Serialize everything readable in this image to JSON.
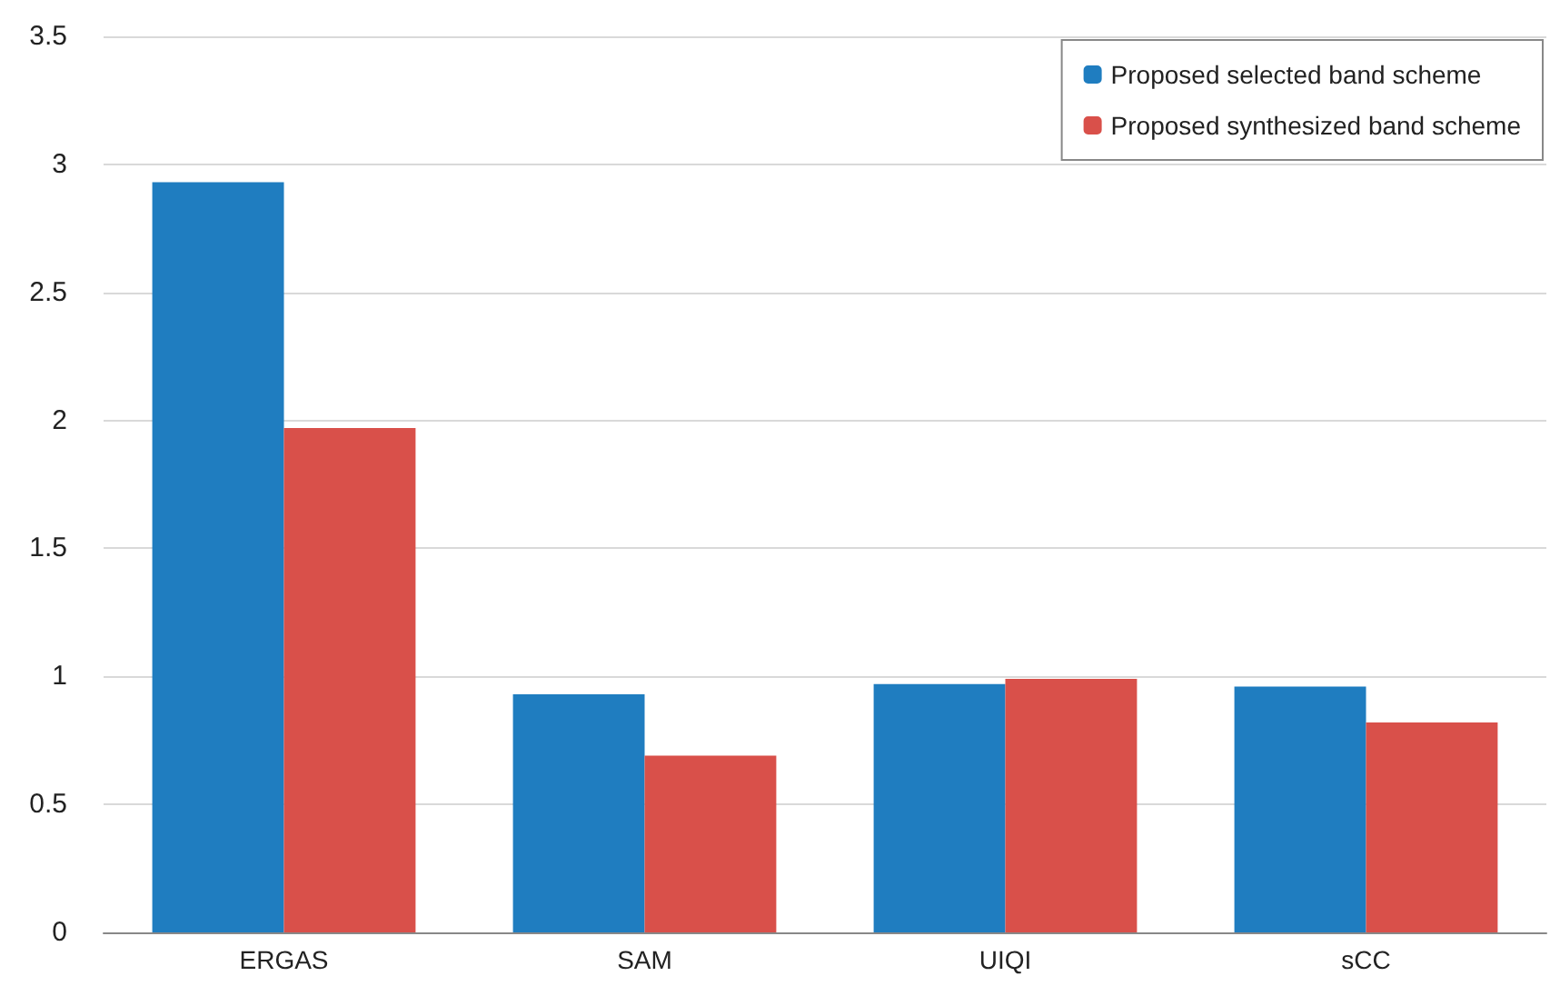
{
  "chart_data": {
    "type": "bar",
    "categories": [
      "ERGAS",
      "SAM",
      "UIQI",
      "sCC"
    ],
    "series": [
      {
        "name": "Proposed selected band scheme",
        "color": "#1f7dc0",
        "values": [
          2.93,
          0.93,
          0.97,
          0.96
        ]
      },
      {
        "name": "Proposed synthesized band scheme",
        "color": "#d9504a",
        "values": [
          1.97,
          0.69,
          0.99,
          0.82
        ]
      }
    ],
    "ylim": [
      0,
      3.5
    ],
    "yticks": [
      0,
      0.5,
      1,
      1.5,
      2,
      2.5,
      3,
      3.5
    ],
    "grid": "y",
    "legend": "top right"
  }
}
